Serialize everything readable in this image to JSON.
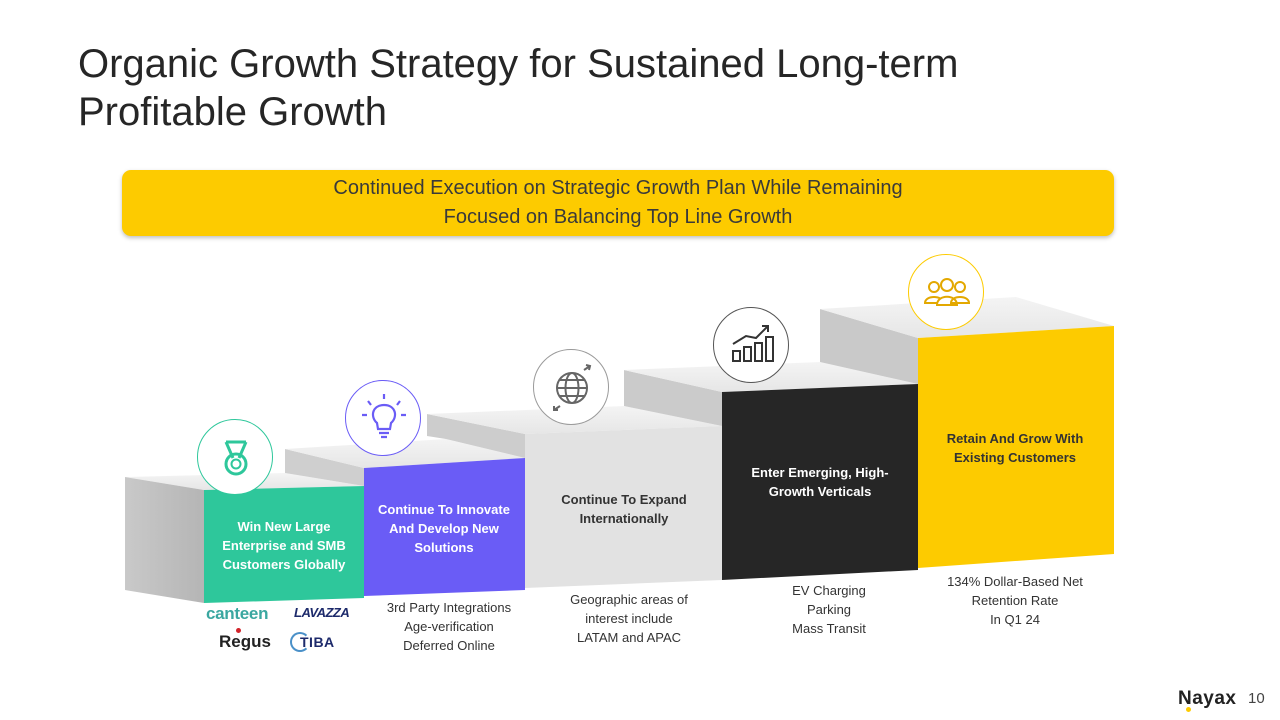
{
  "title": {
    "line1": "Organic Growth Strategy for Sustained Long-term",
    "line2": "Profitable Growth"
  },
  "banner": {
    "line1": "Continued Execution on Strategic Growth Plan While Remaining",
    "line2": "Focused on Balancing Top Line Growth"
  },
  "steps": [
    {
      "label": "Win New Large Enterprise and SMB Customers Globally",
      "color": "#2ec79b",
      "icon": "medal-icon"
    },
    {
      "label": "Continue To Innovate And Develop New Solutions",
      "color": "#6a5cf6",
      "icon": "lightbulb-icon"
    },
    {
      "label": "Continue To Expand Internationally",
      "color": "#e2e2e2",
      "icon": "globe-icon"
    },
    {
      "label": "Enter Emerging, High-Growth Verticals",
      "color": "#262626",
      "icon": "growth-chart-icon"
    },
    {
      "label": "Retain And Grow With Existing Customers",
      "color": "#fdcb00",
      "icon": "customers-icon"
    }
  ],
  "descriptions": {
    "innovate": [
      "3rd Party Integrations",
      "Age-verification",
      "Deferred Online"
    ],
    "expand": [
      "Geographic areas of",
      "interest include",
      "LATAM and APAC"
    ],
    "verticals": [
      "EV Charging",
      "Parking",
      "Mass Transit"
    ],
    "retain": [
      "134% Dollar-Based Net",
      "Retention Rate",
      "In Q1 24"
    ]
  },
  "logos": {
    "canteen": "canteen",
    "lavazza": "LAVAZZA",
    "regus": "Regus",
    "tiba": "TIBA"
  },
  "footer": {
    "brand": "Nayax",
    "page": "10"
  }
}
